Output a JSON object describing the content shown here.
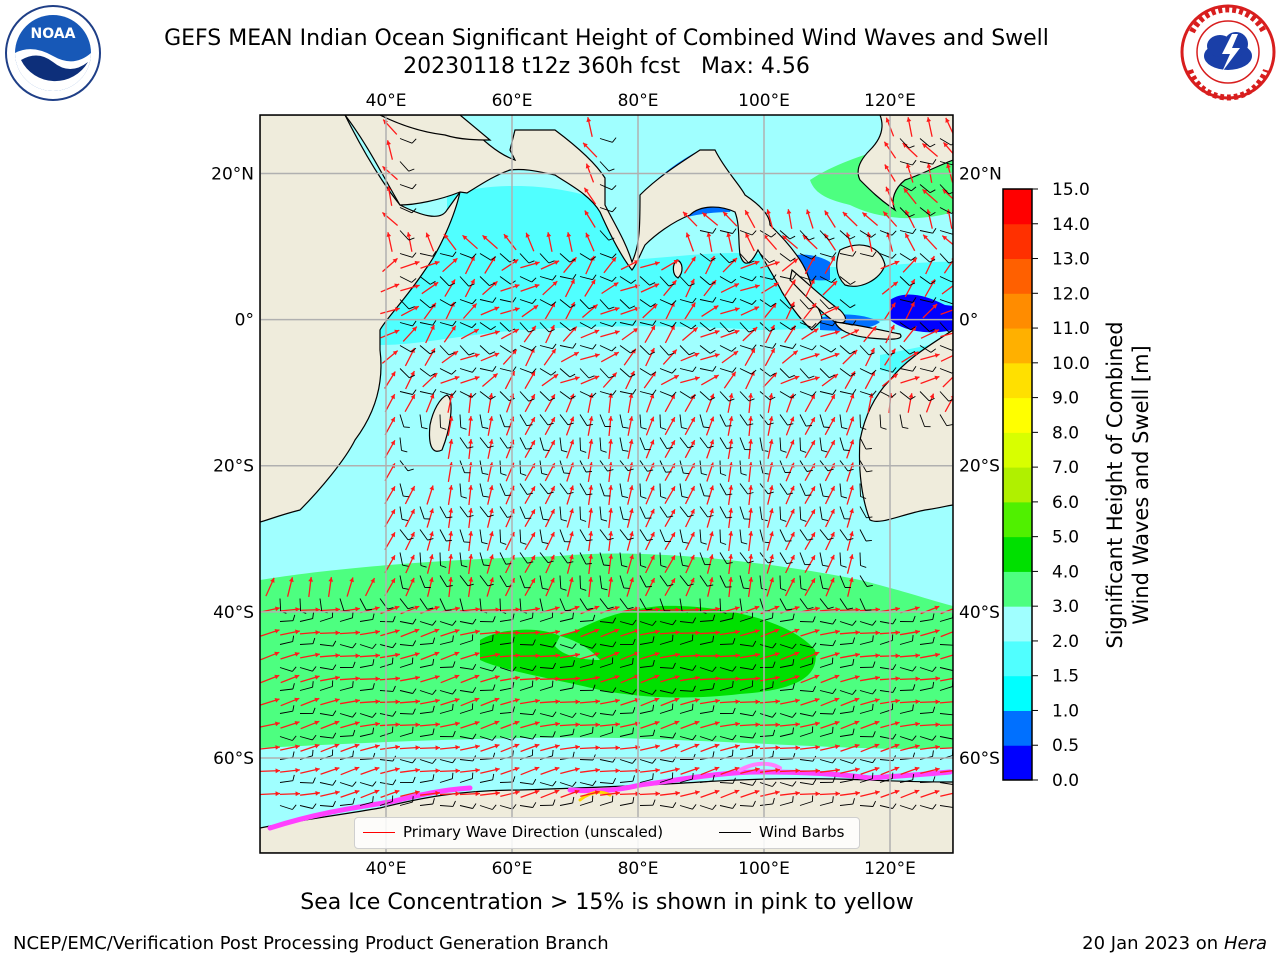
{
  "header": {
    "title_line1": "GEFS MEAN Indian Ocean Significant Height of Combined Wind Waves and Swell",
    "title_line2": "20230118 t12z 360h fcst   Max: 4.56"
  },
  "logos": {
    "left_icon": "noaa-logo-icon",
    "left_text": "NOAA",
    "right_icon": "nws-logo-icon"
  },
  "map": {
    "projection": "lat-lon",
    "lon_range": [
      20,
      130
    ],
    "lat_range": [
      -73,
      28
    ],
    "lon_ticks": [
      40,
      60,
      80,
      100,
      120
    ],
    "lon_tick_labels": [
      "40°E",
      "60°E",
      "80°E",
      "100°E",
      "120°E"
    ],
    "lat_ticks": [
      20,
      0,
      -20,
      -40,
      -60
    ],
    "lat_tick_labels": [
      "20°N",
      "0°",
      "20°S",
      "40°S",
      "60°S"
    ],
    "grid": true,
    "ocean_default_class": "2.0-3.0 m",
    "land_color": "#efecdc",
    "regions": [
      {
        "name": "southern-ocean-belt",
        "class": "3.0-4.0 m",
        "lat": [
          -66,
          -42
        ]
      },
      {
        "name": "peak-wave-area",
        "class": "4.0-5.0 m",
        "lon": [
          57,
          107
        ],
        "lat": [
          -57,
          -48
        ]
      },
      {
        "name": "sea-ice-edge",
        "class": "sea ice > 15%",
        "lat": [
          -73,
          -68
        ]
      }
    ]
  },
  "colorbar": {
    "label": "Significant Height of Combined Wind Waves and Swell [m]",
    "label_line1": "Significant Height of Combined",
    "label_line2": "Wind Waves and Swell [m]",
    "ticks": [
      "0.0",
      "0.5",
      "1.0",
      "1.5",
      "2.0",
      "3.0",
      "4.0",
      "5.0",
      "6.0",
      "7.0",
      "8.0",
      "9.0",
      "10.0",
      "11.0",
      "12.0",
      "13.0",
      "14.0",
      "15.0"
    ],
    "colors": [
      "#0000ff",
      "#0070ff",
      "#00ffff",
      "#50ffff",
      "#a0ffff",
      "#4dff80",
      "#00e000",
      "#50f000",
      "#b0f000",
      "#d8ff00",
      "#ffff00",
      "#ffe000",
      "#ffb000",
      "#ff8c00",
      "#ff6000",
      "#ff3000",
      "#ff0000"
    ]
  },
  "legend": {
    "items": [
      {
        "label": "Primary Wave Direction (unscaled)",
        "color": "#ff0000"
      },
      {
        "label": "Wind Barbs",
        "color": "#000000"
      }
    ]
  },
  "caption": "Sea Ice Concentration > 15% is shown in pink to yellow",
  "footer": {
    "left": "NCEP/EMC/Verification Post Processing Product Generation Branch",
    "date": "20 Jan 2023 on",
    "host": "Hera"
  }
}
